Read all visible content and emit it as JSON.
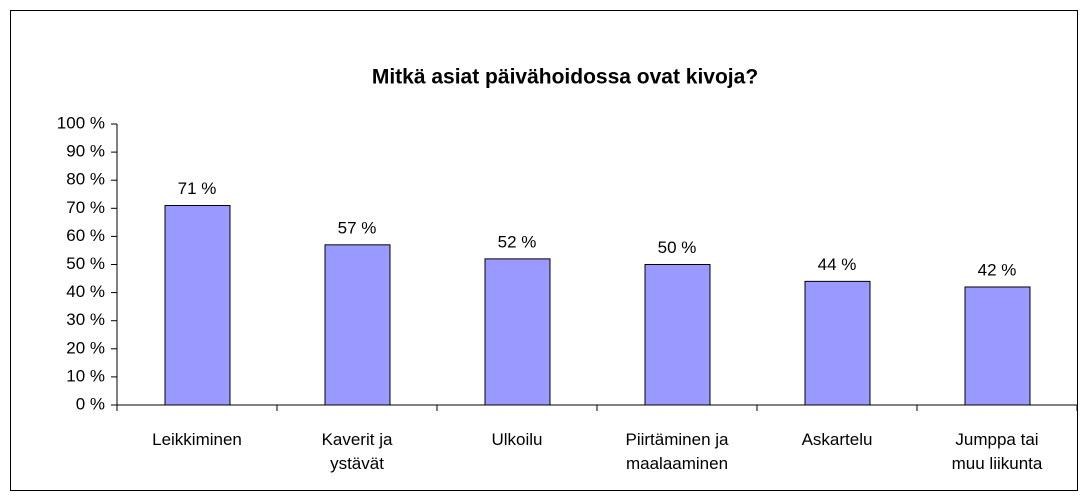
{
  "chart_data": {
    "type": "bar",
    "title": "Mitkä asiat päivähoidossa ovat kivoja?",
    "categories": [
      "Leikkiminen",
      "Kaverit ja ystävät",
      "Ulkoilu",
      "Piirtäminen ja maalaaminen",
      "Askartelu",
      "Jumppa tai muu liikunta"
    ],
    "values": [
      71,
      57,
      52,
      50,
      44,
      42
    ],
    "value_labels": [
      "71 %",
      "57 %",
      "52 %",
      "50 %",
      "44 %",
      "42 %"
    ],
    "color": "#9999ff",
    "ylim": [
      0,
      100
    ],
    "yticks": [
      {
        "value": 0,
        "label": "0 %"
      },
      {
        "value": 10,
        "label": "10 %"
      },
      {
        "value": 20,
        "label": "20 %"
      },
      {
        "value": 30,
        "label": "30 %"
      },
      {
        "value": 40,
        "label": "40 %"
      },
      {
        "value": 50,
        "label": "50 %"
      },
      {
        "value": 60,
        "label": "60 %"
      },
      {
        "value": 70,
        "label": "70 %"
      },
      {
        "value": 80,
        "label": "80 %"
      },
      {
        "value": 90,
        "label": "90 %"
      },
      {
        "value": 100,
        "label": "100 %"
      }
    ],
    "grid": false
  }
}
